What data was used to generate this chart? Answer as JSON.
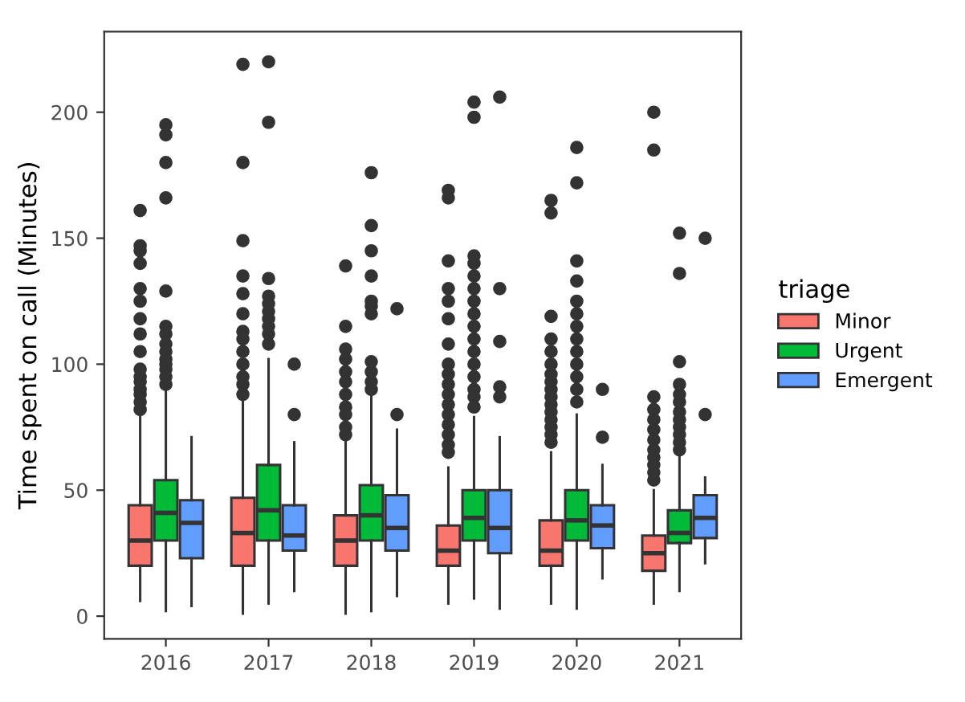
{
  "chart_data": {
    "type": "box",
    "ylabel": "Time spent on call (Minutes)",
    "legend_title": "triage",
    "legend": "right",
    "grid": false,
    "categories": [
      "2016",
      "2017",
      "2018",
      "2019",
      "2020",
      "2021"
    ],
    "ylim": [
      -9,
      232
    ],
    "yticks": [
      0,
      50,
      100,
      150,
      200
    ],
    "series": [
      {
        "name": "Minor",
        "color": "#f8766d",
        "boxes": [
          {
            "low": 6,
            "q1": 20,
            "median": 30,
            "q3": 44,
            "high": 80,
            "outliers": [
              82,
              85,
              88,
              90,
              93,
              95,
              98,
              105,
              112,
              118,
              125,
              130,
              140,
              145,
              147,
              161
            ]
          },
          {
            "low": 1,
            "q1": 20,
            "median": 33,
            "q3": 47,
            "high": 86,
            "outliers": [
              88,
              92,
              95,
              100,
              105,
              110,
              113,
              120,
              128,
              135,
              149,
              180,
              219
            ]
          },
          {
            "low": 1,
            "q1": 20,
            "median": 30,
            "q3": 40,
            "high": 70,
            "outliers": [
              72,
              75,
              80,
              83,
              88,
              93,
              97,
              102,
              106,
              115,
              139
            ]
          },
          {
            "low": 5,
            "q1": 20,
            "median": 26,
            "q3": 36,
            "high": 59,
            "outliers": [
              65,
              68,
              72,
              76,
              80,
              84,
              88,
              92,
              96,
              100,
              108,
              118,
              125,
              130,
              141,
              166,
              169
            ]
          },
          {
            "low": 5,
            "q1": 20,
            "median": 26,
            "q3": 38,
            "high": 65,
            "outliers": [
              69,
              72,
              75,
              78,
              81,
              84,
              87,
              90,
              93,
              96,
              100,
              105,
              110,
              119,
              160,
              165
            ]
          },
          {
            "low": 5,
            "q1": 18,
            "median": 25,
            "q3": 32,
            "high": 50,
            "outliers": [
              54,
              57,
              60,
              63,
              66,
              70,
              74,
              78,
              82,
              87,
              185,
              200
            ]
          }
        ]
      },
      {
        "name": "Urgent",
        "color": "#00ba38",
        "boxes": [
          {
            "low": 2,
            "q1": 30,
            "median": 41,
            "q3": 54,
            "high": 90,
            "outliers": [
              92,
              95,
              98,
              100,
              102,
              105,
              108,
              112,
              115,
              129,
              166,
              180,
              191,
              195
            ]
          },
          {
            "low": 5,
            "q1": 30,
            "median": 42,
            "q3": 60,
            "high": 102,
            "outliers": [
              108,
              112,
              115,
              118,
              121,
              124,
              127,
              134,
              196,
              220
            ]
          },
          {
            "low": 2,
            "q1": 30,
            "median": 40,
            "q3": 52,
            "high": 88,
            "outliers": [
              90,
              93,
              97,
              101,
              120,
              123,
              125,
              135,
              145,
              155,
              176
            ]
          },
          {
            "low": 7,
            "q1": 30,
            "median": 39,
            "q3": 50,
            "high": 79,
            "outliers": [
              83,
              87,
              90,
              95,
              100,
              105,
              110,
              115,
              120,
              125,
              130,
              135,
              140,
              143,
              198,
              204
            ]
          },
          {
            "low": 3,
            "q1": 30,
            "median": 38,
            "q3": 50,
            "high": 80,
            "outliers": [
              85,
              90,
              95,
              100,
              105,
              110,
              115,
              120,
              125,
              133,
              141,
              172,
              186
            ]
          },
          {
            "low": 10,
            "q1": 29,
            "median": 33,
            "q3": 42,
            "high": 64,
            "outliers": [
              66,
              69,
              72,
              75,
              78,
              81,
              85,
              88,
              92,
              101,
              136,
              152
            ]
          }
        ]
      },
      {
        "name": "Emergent",
        "color": "#619cff",
        "boxes": [
          {
            "low": 4,
            "q1": 23,
            "median": 37,
            "q3": 46,
            "high": 71
          },
          {
            "low": 10,
            "q1": 26,
            "median": 32,
            "q3": 44,
            "high": 69,
            "outliers": [
              80,
              100
            ]
          },
          {
            "low": 8,
            "q1": 26,
            "median": 35,
            "q3": 48,
            "high": 74,
            "outliers": [
              80,
              122
            ]
          },
          {
            "low": 3,
            "q1": 25,
            "median": 35,
            "q3": 50,
            "high": 71,
            "outliers": [
              87,
              91,
              109,
              130,
              206
            ]
          },
          {
            "low": 15,
            "q1": 27,
            "median": 36,
            "q3": 44,
            "high": 60,
            "outliers": [
              71,
              90
            ]
          },
          {
            "low": 21,
            "q1": 31,
            "median": 39,
            "q3": 48,
            "high": 55,
            "outliers": [
              80,
              150
            ]
          }
        ]
      }
    ]
  }
}
